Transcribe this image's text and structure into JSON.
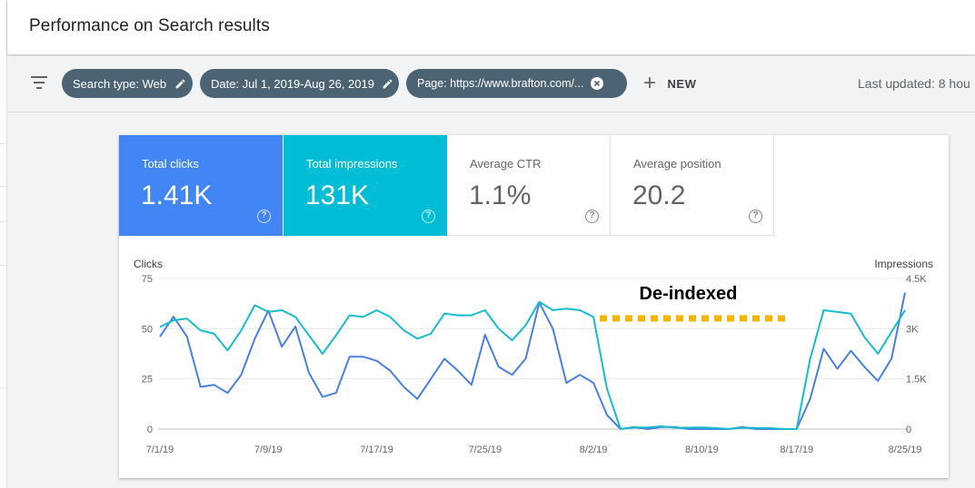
{
  "header": {
    "title": "Performance on Search results"
  },
  "filters": {
    "chips": [
      {
        "label": "Search type: Web",
        "icon": "pencil-icon"
      },
      {
        "label": "Date: Jul 1, 2019-Aug 26, 2019",
        "icon": "pencil-icon"
      },
      {
        "label": "Page: https://www.brafton.com/...",
        "icon": "close-circle-icon"
      }
    ],
    "new_label": "NEW",
    "last_updated": "Last updated: 8 hou"
  },
  "metrics": {
    "clicks": {
      "label": "Total clicks",
      "value": "1.41K",
      "color": "#4285f4"
    },
    "impressions": {
      "label": "Total impressions",
      "value": "131K",
      "color": "#00bcd4"
    },
    "ctr": {
      "label": "Average CTR",
      "value": "1.1%"
    },
    "position": {
      "label": "Average position",
      "value": "20.2"
    }
  },
  "chart_data": {
    "type": "line",
    "ylabel_left": "Clicks",
    "ylabel_right": "Impressions",
    "left_ticks": [
      "75",
      "50",
      "25",
      "0"
    ],
    "right_ticks": [
      "4.5K",
      "3K",
      "1.5K",
      "0"
    ],
    "ylim_left": [
      0,
      75
    ],
    "ylim_right": [
      0,
      4500
    ],
    "x_tick_labels": [
      "7/1/19",
      "7/9/19",
      "7/17/19",
      "7/25/19",
      "8/2/19",
      "8/10/19",
      "8/17/19",
      "8/25/19"
    ],
    "x_tick_days": [
      0,
      8,
      16,
      24,
      32,
      40,
      47,
      55
    ],
    "annotation": "De-indexed",
    "annotation_color": "#f4b400",
    "annotation_range": [
      32,
      46
    ],
    "grid": true,
    "series": [
      {
        "name": "Clicks",
        "axis": "left",
        "color": "#4a7fe0",
        "values": [
          46,
          56,
          46,
          21,
          22,
          18,
          27,
          45,
          59,
          41,
          51,
          28,
          16,
          18,
          36,
          36,
          34,
          29,
          21,
          15,
          25,
          35,
          29,
          22,
          47,
          31,
          27,
          35,
          63,
          50,
          23,
          27,
          23,
          7,
          0,
          1,
          0,
          1,
          1,
          0,
          0,
          0,
          0,
          1,
          0,
          0,
          0,
          0,
          15,
          40,
          30,
          39,
          31,
          24,
          35,
          68
        ]
      },
      {
        "name": "Impressions",
        "axis": "right",
        "color": "#16bccd",
        "values": [
          3050,
          3250,
          3300,
          2950,
          2850,
          2350,
          2950,
          3700,
          3500,
          3550,
          3350,
          2800,
          2250,
          2800,
          3400,
          3350,
          3550,
          3350,
          2950,
          2700,
          2850,
          3450,
          3400,
          3400,
          3550,
          3000,
          2650,
          3100,
          3800,
          3550,
          3600,
          3550,
          3350,
          1200,
          0,
          50,
          50,
          80,
          40,
          40,
          50,
          30,
          0,
          40,
          30,
          30,
          0,
          0,
          2100,
          3550,
          3500,
          3450,
          2750,
          2250,
          2900,
          3550
        ]
      }
    ]
  }
}
